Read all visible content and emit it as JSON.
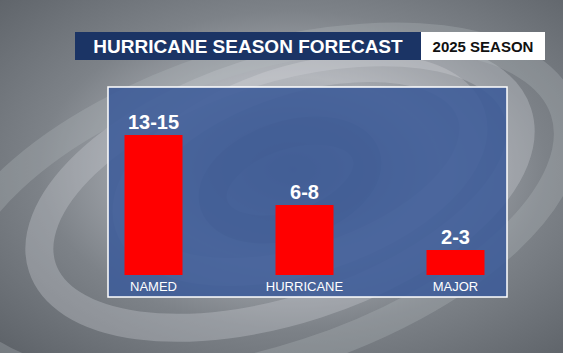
{
  "chart_data": {
    "type": "bar",
    "title": "HURRICANE SEASON FORECAST",
    "subtitle": "2025 SEASON",
    "categories": [
      "NAMED",
      "HURRICANE",
      "MAJOR"
    ],
    "values": [
      14,
      7,
      2.5
    ],
    "value_labels": [
      "13-15",
      "6-8",
      "2-3"
    ],
    "color": "#ff0000",
    "ylim": [
      0,
      16
    ],
    "data_labels": true,
    "tick_labels": "x",
    "grid": false
  }
}
